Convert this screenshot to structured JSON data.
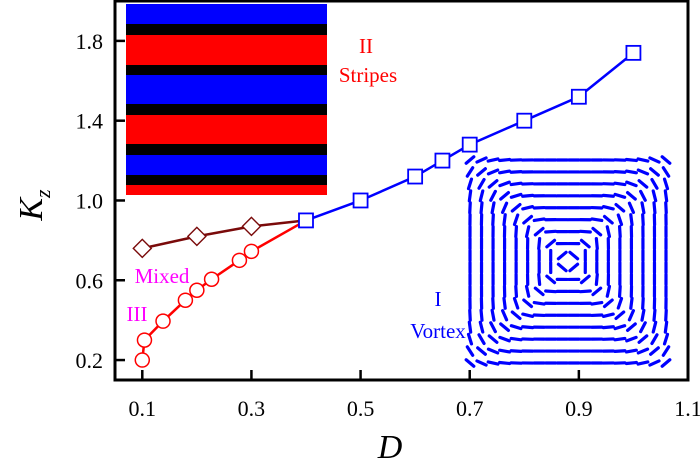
{
  "chart_data": {
    "type": "line",
    "title": "",
    "xlabel": "D",
    "ylabel": "K",
    "ylabel_subscript": "z",
    "xlim": [
      0.05,
      1.1
    ],
    "ylim": [
      0.1,
      2.0
    ],
    "xticks": [
      "0.1",
      "0.3",
      "0.5",
      "0.7",
      "0.9",
      "1.1"
    ],
    "yticks": [
      "0.2",
      "0.6",
      "1.0",
      "1.4",
      "1.8"
    ],
    "grid": false,
    "series": [
      {
        "marker": "square",
        "color": "#0000ff",
        "x": [
          0.4,
          0.5,
          0.6,
          0.65,
          0.7,
          0.8,
          0.9,
          1.0
        ],
        "y": [
          0.9,
          1.0,
          1.12,
          1.2,
          1.28,
          1.4,
          1.52,
          1.74
        ]
      },
      {
        "marker": "diamond",
        "color": "#7a0a0a",
        "x": [
          0.1,
          0.2,
          0.3,
          0.4
        ],
        "y": [
          0.76,
          0.82,
          0.87,
          0.9
        ]
      },
      {
        "marker": "circle",
        "color": "#ff0000",
        "x": [
          0.1,
          0.104,
          0.138,
          0.179,
          0.2,
          0.227,
          0.278,
          0.3,
          0.4
        ],
        "y": [
          0.2,
          0.3,
          0.395,
          0.5,
          0.55,
          0.605,
          0.7,
          0.745,
          0.9
        ]
      }
    ],
    "annotations": [
      {
        "lines": [
          "II",
          "Stripes"
        ],
        "color": "#ff0000"
      },
      {
        "lines": [
          "Mixed",
          "III"
        ],
        "color": "#ff00ff"
      },
      {
        "lines": [
          "I",
          "Vortex"
        ],
        "color": "#0000ff"
      }
    ],
    "insets": [
      {
        "kind": "stripes",
        "colors": [
          "#0000ff",
          "#000000",
          "#ff0000"
        ]
      },
      {
        "kind": "vortex",
        "color": "#0000ff"
      }
    ]
  }
}
